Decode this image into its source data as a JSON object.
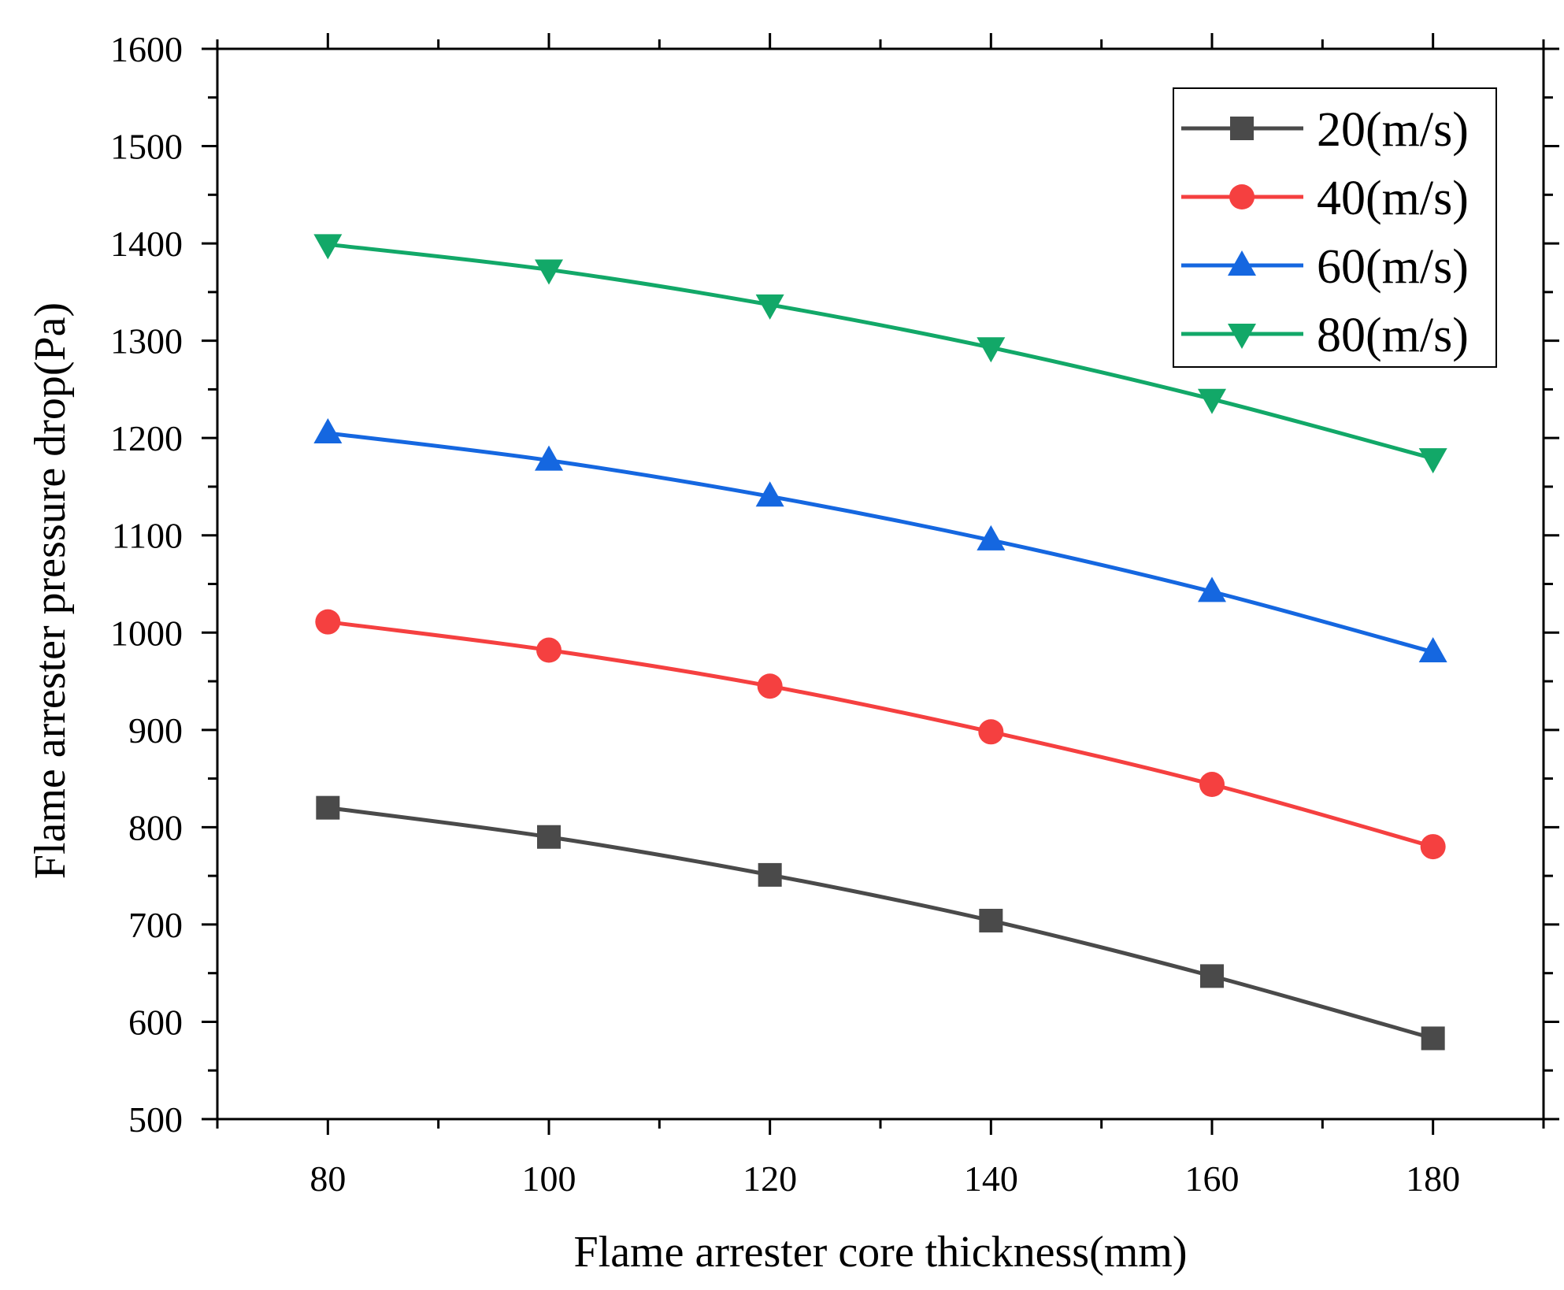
{
  "chart_data": {
    "type": "line",
    "xlabel": "Flame arrester core thickness(mm)",
    "ylabel": "Flame arrester pressure drop(Pa)",
    "xlim": [
      70,
      190
    ],
    "ylim": [
      500,
      1600
    ],
    "xticks": [
      80,
      100,
      120,
      140,
      160,
      180
    ],
    "yticks": [
      500,
      600,
      700,
      800,
      900,
      1000,
      1100,
      1200,
      1300,
      1400,
      1500,
      1600
    ],
    "legend_position": "top-right",
    "x": [
      80,
      100,
      120,
      140,
      160,
      180
    ],
    "series": [
      {
        "name": "20(m/s)",
        "marker": "square",
        "color": "#4a4a4a",
        "values": [
          820,
          790,
          751,
          704,
          647,
          583
        ]
      },
      {
        "name": "40(m/s)",
        "marker": "circle",
        "color": "#f54040",
        "values": [
          1011,
          982,
          945,
          898,
          844,
          780
        ]
      },
      {
        "name": "60(m/s)",
        "marker": "triangle-up",
        "color": "#1567e0",
        "values": [
          1205,
          1177,
          1140,
          1095,
          1042,
          980
        ]
      },
      {
        "name": "80(m/s)",
        "marker": "triangle-down",
        "color": "#12a868",
        "values": [
          1399,
          1373,
          1337,
          1293,
          1240,
          1179
        ]
      }
    ]
  }
}
